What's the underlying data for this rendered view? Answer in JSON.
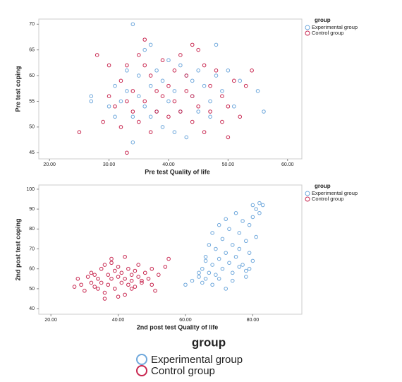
{
  "chart_data": [
    {
      "type": "scatter",
      "x_label": "Pre test Quality of life",
      "y_label": "Pre test coping",
      "legend_title": "group",
      "grid": false,
      "xlim": [
        18.2,
        62.4
      ],
      "xticks": [
        {
          "value": 20,
          "label": "20.00"
        },
        {
          "value": 30,
          "label": "30.00"
        },
        {
          "value": 40,
          "label": "40.00"
        },
        {
          "value": 50,
          "label": "50.00"
        },
        {
          "value": 60,
          "label": "60.00"
        }
      ],
      "ylim": [
        43.8,
        71
      ],
      "yticks": [
        45,
        50,
        55,
        60,
        65,
        70
      ],
      "series": [
        {
          "name": "Experimental group",
          "color": "#6fa8dc",
          "x": [
            27,
            27,
            30,
            31,
            32,
            33,
            33,
            34,
            34,
            35,
            35,
            36,
            36,
            37,
            37,
            38,
            38,
            39,
            39,
            40,
            40,
            41,
            41,
            42,
            42,
            43,
            43,
            44,
            44,
            45,
            45,
            46,
            47,
            47,
            48,
            48,
            49,
            50,
            51,
            52,
            55,
            56,
            34,
            37,
            31
          ],
          "values": [
            56,
            55,
            54,
            58,
            55,
            61,
            57,
            70,
            52,
            60,
            56,
            65,
            54,
            66,
            58,
            61,
            53,
            59,
            50,
            55,
            63,
            49,
            57,
            53,
            62,
            60,
            48,
            56,
            59,
            53,
            61,
            58,
            55,
            52,
            66,
            60,
            57,
            61,
            54,
            59,
            57,
            53,
            47,
            52,
            52
          ]
        },
        {
          "name": "Control group",
          "color": "#c8264f",
          "x": [
            25,
            28,
            29,
            30,
            30,
            31,
            32,
            32,
            33,
            33,
            34,
            34,
            35,
            35,
            36,
            36,
            37,
            37,
            38,
            38,
            39,
            39,
            40,
            40,
            41,
            41,
            42,
            42,
            43,
            43,
            44,
            44,
            45,
            45,
            46,
            46,
            47,
            47,
            48,
            49,
            49,
            50,
            50,
            51,
            52,
            53,
            54,
            33,
            36,
            44
          ],
          "values": [
            49,
            64,
            51,
            62,
            56,
            54,
            59,
            50,
            55,
            62,
            53,
            57,
            64,
            51,
            67,
            55,
            60,
            49,
            57,
            53,
            63,
            56,
            58,
            52,
            61,
            55,
            64,
            53,
            57,
            60,
            56,
            51,
            65,
            54,
            62,
            49,
            58,
            53,
            61,
            56,
            51,
            54,
            48,
            59,
            52,
            58,
            61,
            45,
            62,
            66
          ]
        }
      ]
    },
    {
      "type": "scatter",
      "x_label": "2nd post test Quality of life",
      "y_label": "2nd post test coping",
      "legend_title": "group",
      "grid": false,
      "xlim": [
        16.4,
        94.6
      ],
      "xticks": [
        {
          "value": 20,
          "label": "20.00"
        },
        {
          "value": 40,
          "label": "40.00"
        },
        {
          "value": 60,
          "label": "60.00"
        },
        {
          "value": 80,
          "label": "80.00"
        }
      ],
      "ylim": [
        37.2,
        102.1
      ],
      "yticks": [
        40,
        50,
        60,
        70,
        80,
        90,
        100
      ],
      "series": [
        {
          "name": "Experimental group",
          "color": "#6fa8dc",
          "x": [
            60,
            62,
            64,
            65,
            65,
            66,
            66,
            67,
            67,
            68,
            68,
            69,
            69,
            70,
            70,
            71,
            71,
            72,
            72,
            73,
            73,
            74,
            74,
            75,
            75,
            76,
            76,
            77,
            77,
            78,
            78,
            79,
            79,
            80,
            80,
            81,
            81,
            82,
            82,
            83,
            68,
            70,
            72,
            74,
            76,
            78,
            80,
            66,
            64,
            79
          ],
          "values": [
            52,
            54,
            56,
            53,
            60,
            55,
            66,
            58,
            72,
            62,
            78,
            57,
            70,
            65,
            82,
            60,
            75,
            68,
            85,
            63,
            80,
            58,
            72,
            66,
            88,
            70,
            78,
            62,
            84,
            56,
            74,
            68,
            82,
            86,
            92,
            76,
            90,
            88,
            93,
            92,
            52,
            55,
            50,
            54,
            61,
            59,
            64,
            64,
            58,
            60
          ]
        },
        {
          "name": "Control group",
          "color": "#c8264f",
          "x": [
            27,
            28,
            30,
            31,
            32,
            32,
            33,
            33,
            34,
            34,
            35,
            35,
            36,
            36,
            37,
            37,
            38,
            38,
            39,
            39,
            40,
            40,
            41,
            41,
            42,
            42,
            43,
            43,
            44,
            44,
            45,
            45,
            46,
            46,
            47,
            48,
            49,
            50,
            50,
            51,
            52,
            54,
            55,
            29,
            36,
            38,
            40,
            42,
            44,
            47
          ],
          "values": [
            51,
            55,
            49,
            56,
            53,
            58,
            51,
            57,
            50,
            55,
            60,
            53,
            62,
            48,
            57,
            52,
            65,
            55,
            59,
            50,
            56,
            61,
            53,
            58,
            47,
            55,
            60,
            52,
            57,
            54,
            59,
            51,
            56,
            62,
            53,
            58,
            55,
            52,
            60,
            49,
            57,
            61,
            65,
            52,
            45,
            63,
            46,
            66,
            50,
            54
          ]
        }
      ]
    }
  ],
  "legend": {
    "title": "group",
    "entries": [
      {
        "name": "Experimental group",
        "color": "#6fa8dc"
      },
      {
        "name": "Control group",
        "color": "#c8264f"
      }
    ]
  }
}
